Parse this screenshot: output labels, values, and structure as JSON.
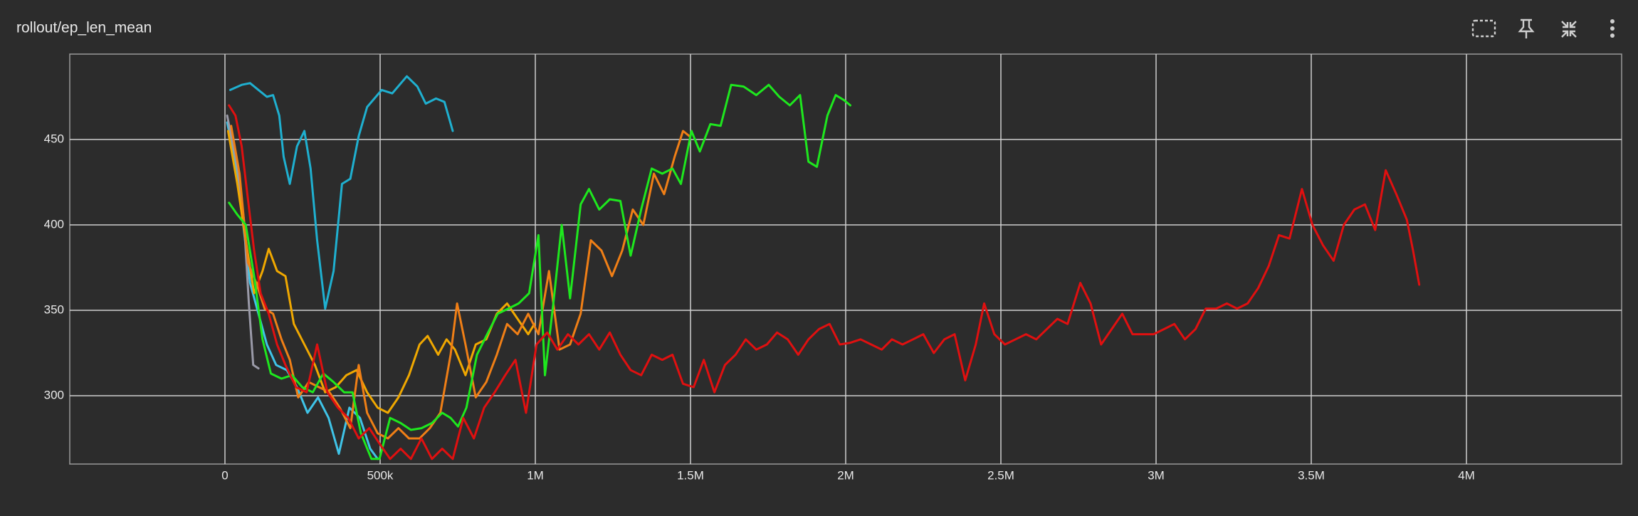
{
  "chart_data": {
    "type": "line",
    "title": "rollout/ep_len_mean",
    "xlim": [
      -500000,
      4500000
    ],
    "xticks": [
      0,
      {
        "value": 500000,
        "label": "500k"
      },
      {
        "value": 1000000,
        "label": "1M"
      },
      {
        "value": 1500000,
        "label": "1.5M"
      },
      {
        "value": 2000000,
        "label": "2M"
      },
      {
        "value": 2500000,
        "label": "2.5M"
      },
      {
        "value": 3000000,
        "label": "3M"
      },
      {
        "value": 3500000,
        "label": "3.5M"
      },
      {
        "value": 4000000,
        "label": "4M"
      }
    ],
    "ylim": [
      260,
      500
    ],
    "yticks": [
      300,
      350,
      400,
      450
    ],
    "grid": true,
    "series": [
      {
        "color": "#1fb0d0",
        "x": [
          17000,
          54000,
          81000,
          108000,
          135000,
          155000,
          175000,
          189000,
          209000,
          232000,
          256000,
          276000,
          297000,
          323000,
          350000,
          377000,
          404000,
          431000,
          458000,
          505000,
          539000,
          586000,
          620000,
          647000,
          680000,
          707000,
          734000
        ],
        "values": [
          479,
          482,
          483,
          479,
          475,
          476,
          464,
          440,
          424,
          446,
          455,
          433,
          391,
          351,
          373,
          424,
          427,
          452,
          469,
          479,
          477,
          487,
          481,
          471,
          474,
          472,
          455
        ]
      },
      {
        "color": "#3fc4e8",
        "x": [
          7000,
          30000,
          57000,
          81000,
          108000,
          135000,
          165000,
          199000,
          232000,
          266000,
          300000,
          334000,
          367000,
          401000,
          435000,
          468000,
          492000
        ],
        "values": [
          460,
          440,
          403,
          366,
          348,
          330,
          318,
          315,
          305,
          290,
          299,
          287,
          266,
          293,
          287,
          269,
          263
        ]
      },
      {
        "color": "#9a9aa8",
        "x": [
          7000,
          40000,
          61000,
          77000,
          91000,
          108000
        ],
        "values": [
          464,
          434,
          403,
          354,
          318,
          316
        ]
      },
      {
        "color": "#f0a800",
        "x": [
          10000,
          40000,
          67000,
          94000,
          121000,
          141000,
          168000,
          195000,
          222000,
          256000,
          290000,
          323000,
          357000,
          391000,
          424000,
          458000,
          492000,
          525000,
          559000,
          593000,
          627000,
          653000,
          687000,
          714000,
          741000,
          775000,
          808000,
          842000,
          876000,
          909000,
          943000,
          977000,
          997000
        ],
        "values": [
          455,
          424,
          391,
          360,
          373,
          386,
          373,
          370,
          342,
          330,
          318,
          302,
          305,
          312,
          315,
          302,
          293,
          290,
          299,
          312,
          330,
          335,
          324,
          333,
          327,
          312,
          330,
          333,
          348,
          354,
          345,
          336,
          342
        ]
      },
      {
        "color": "#f07f16",
        "x": [
          20000,
          47000,
          74000,
          101000,
          128000,
          155000,
          182000,
          209000,
          236000,
          270000,
          303000,
          337000,
          370000,
          404000,
          431000,
          458000,
          492000,
          525000,
          559000,
          593000,
          627000,
          660000,
          694000,
          727000,
          748000,
          775000,
          808000,
          842000,
          876000,
          909000,
          943000,
          977000,
          1010000,
          1044000,
          1078000,
          1112000,
          1146000,
          1179000,
          1213000,
          1247000,
          1280000,
          1314000,
          1348000,
          1382000,
          1415000,
          1449000,
          1476000,
          1496000
        ],
        "values": [
          458,
          430,
          378,
          366,
          351,
          348,
          333,
          321,
          299,
          308,
          305,
          302,
          293,
          281,
          318,
          290,
          278,
          275,
          281,
          275,
          275,
          281,
          290,
          324,
          354,
          330,
          299,
          308,
          324,
          342,
          336,
          348,
          336,
          373,
          327,
          330,
          348,
          391,
          385,
          370,
          385,
          409,
          400,
          430,
          418,
          440,
          455,
          452
        ]
      },
      {
        "color": "#1ee81e",
        "x": [
          13000,
          40000,
          67000,
          94000,
          121000,
          148000,
          182000,
          216000,
          249000,
          283000,
          317000,
          350000,
          384000,
          411000,
          438000,
          472000,
          498000,
          532000,
          566000,
          599000,
          633000,
          667000,
          700000,
          727000,
          751000,
          778000,
          812000,
          845000,
          879000,
          913000,
          946000,
          980000,
          1010000,
          1031000,
          1058000,
          1085000,
          1112000,
          1146000,
          1173000,
          1206000,
          1240000,
          1274000,
          1307000,
          1341000,
          1375000,
          1409000,
          1442000,
          1469000,
          1503000,
          1530000,
          1564000,
          1597000,
          1631000,
          1671000,
          1712000,
          1752000,
          1786000,
          1820000,
          1853000,
          1880000,
          1907000,
          1941000,
          1968000,
          1995000,
          2015000
        ],
        "values": [
          413,
          406,
          400,
          370,
          333,
          313,
          310,
          312,
          305,
          302,
          313,
          308,
          302,
          302,
          278,
          263,
          263,
          287,
          284,
          280,
          281,
          284,
          290,
          287,
          282,
          293,
          324,
          336,
          348,
          351,
          354,
          360,
          394,
          312,
          354,
          400,
          357,
          412,
          421,
          409,
          415,
          414,
          382,
          409,
          433,
          430,
          433,
          424,
          455,
          443,
          459,
          458,
          482,
          481,
          476,
          482,
          475,
          470,
          476,
          437,
          434,
          464,
          476,
          473,
          470
        ]
      },
      {
        "color": "#e01010",
        "x": [
          13000,
          34000,
          54000,
          74000,
          94000,
          115000,
          141000,
          168000,
          195000,
          229000,
          263000,
          297000,
          330000,
          364000,
          397000,
          431000,
          465000,
          498000,
          532000,
          566000,
          599000,
          633000,
          667000,
          700000,
          734000,
          768000,
          802000,
          835000,
          869000,
          903000,
          936000,
          970000,
          1004000,
          1038000,
          1071000,
          1105000,
          1139000,
          1173000,
          1206000,
          1240000,
          1274000,
          1307000,
          1341000,
          1375000,
          1409000,
          1442000,
          1476000,
          1510000,
          1543000,
          1577000,
          1611000,
          1645000,
          1678000,
          1712000,
          1746000,
          1779000,
          1813000,
          1847000,
          1880000,
          1914000,
          1948000,
          1981000,
          2015000,
          2048000,
          2082000,
          2116000,
          2149000,
          2183000,
          2217000,
          2250000,
          2284000,
          2318000,
          2351000,
          2385000,
          2419000,
          2446000,
          2479000,
          2513000,
          2547000,
          2581000,
          2614000,
          2648000,
          2682000,
          2715000,
          2756000,
          2789000,
          2823000,
          2857000,
          2891000,
          2924000,
          2958000,
          2992000,
          3026000,
          3059000,
          3093000,
          3127000,
          3160000,
          3194000,
          3228000,
          3261000,
          3295000,
          3329000,
          3363000,
          3396000,
          3430000,
          3470000,
          3504000,
          3538000,
          3572000,
          3605000,
          3639000,
          3673000,
          3706000,
          3740000,
          3774000,
          3808000,
          3828000,
          3848000
        ],
        "values": [
          470,
          464,
          446,
          415,
          385,
          360,
          348,
          330,
          318,
          305,
          302,
          330,
          302,
          293,
          287,
          275,
          281,
          272,
          263,
          269,
          263,
          275,
          263,
          269,
          263,
          287,
          275,
          293,
          302,
          312,
          321,
          290,
          330,
          337,
          327,
          336,
          330,
          336,
          327,
          337,
          324,
          315,
          312,
          324,
          321,
          324,
          307,
          305,
          321,
          302,
          318,
          324,
          333,
          327,
          330,
          337,
          333,
          324,
          333,
          339,
          342,
          330,
          331,
          333,
          330,
          327,
          333,
          330,
          333,
          336,
          325,
          333,
          336,
          309,
          330,
          354,
          336,
          330,
          333,
          336,
          333,
          339,
          345,
          342,
          366,
          354,
          330,
          339,
          348,
          336,
          336,
          336,
          339,
          342,
          333,
          339,
          351,
          351,
          354,
          351,
          354,
          363,
          376,
          394,
          392,
          421,
          400,
          388,
          379,
          400,
          409,
          412,
          397,
          432,
          418,
          403,
          385,
          365
        ]
      }
    ]
  }
}
